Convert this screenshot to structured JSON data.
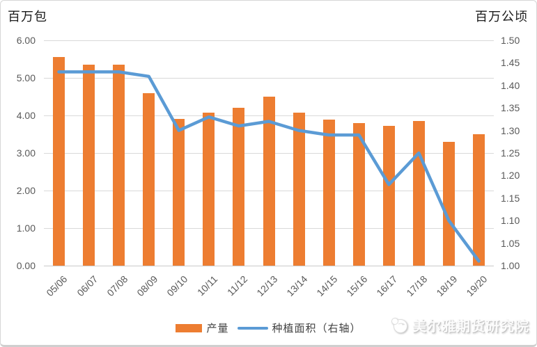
{
  "footer": {
    "brand": "美尔雅期货研究院"
  },
  "legend": {
    "items": [
      {
        "label": "产量",
        "type": "bar"
      },
      {
        "label": "种植面积（右轴）",
        "type": "line"
      }
    ]
  },
  "colors": {
    "bar": "#ed7d31",
    "line": "#5b9bd5",
    "gridline": "#d9d9d9",
    "tick_text": "#595959",
    "axis_title_text": "#1a1a1a"
  },
  "chart_data": {
    "type": "bar",
    "subtype": "bar+line combo, line on secondary axis",
    "title": "",
    "categories": [
      "05/06",
      "06/07",
      "07/08",
      "08/09",
      "09/10",
      "10/11",
      "11/12",
      "12/13",
      "13/14",
      "14/15",
      "15/16",
      "16/17",
      "17/18",
      "18/19",
      "19/20"
    ],
    "series": [
      {
        "name": "产量",
        "type": "bar",
        "axis": "left",
        "values": [
          5.55,
          5.35,
          5.35,
          4.6,
          3.9,
          4.08,
          4.2,
          4.5,
          4.08,
          3.88,
          3.8,
          3.72,
          3.85,
          3.3,
          3.5
        ]
      },
      {
        "name": "种植面积（右轴）",
        "type": "line",
        "axis": "right",
        "values": [
          1.43,
          1.43,
          1.43,
          1.42,
          1.3,
          1.33,
          1.31,
          1.32,
          1.3,
          1.29,
          1.29,
          1.18,
          1.25,
          1.1,
          1.01
        ]
      }
    ],
    "left_axis": {
      "title": "百万包",
      "min": 0,
      "max": 6,
      "step": 1,
      "decimals": 2
    },
    "right_axis": {
      "title": "百万公顷",
      "min": 1.0,
      "max": 1.5,
      "step": 0.05,
      "decimals": 2
    },
    "grid": true,
    "legend_position": "bottom"
  }
}
